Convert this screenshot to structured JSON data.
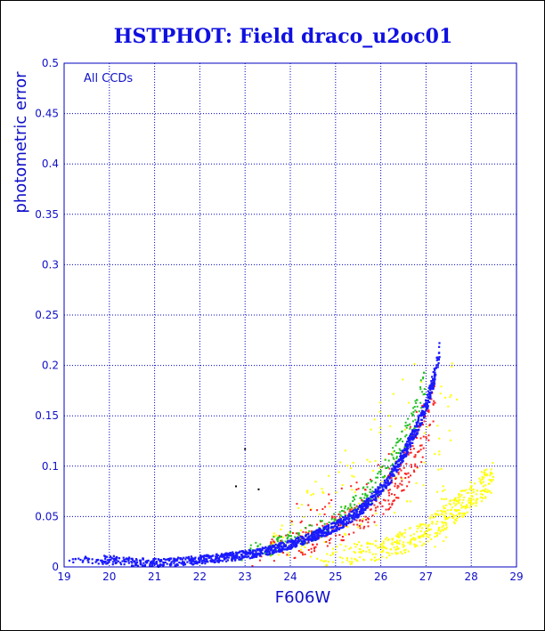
{
  "chart_data": {
    "type": "scatter",
    "title": "HSTPHOT: Field draco_u2oc01",
    "xlabel": "F606W",
    "ylabel": "photometric error",
    "annotation": "All CCDs",
    "xlim": [
      19,
      29
    ],
    "ylim": [
      0,
      0.5
    ],
    "xticks": [
      "19",
      "20",
      "21",
      "22",
      "23",
      "24",
      "25",
      "26",
      "27",
      "28",
      "29"
    ],
    "yticks": [
      "0",
      "0.05",
      "0.1",
      "0.15",
      "0.2",
      "0.25",
      "0.3",
      "0.35",
      "0.4",
      "0.45",
      "0.5"
    ],
    "grid": true,
    "colors": {
      "title": "#1010e0",
      "axes": "#0000c0",
      "grid": "#0000c0",
      "series_blue": "#1a1aff",
      "series_red": "#ff2020",
      "series_green": "#20c020",
      "series_yellow": "#ffff00",
      "series_black": "#000000"
    },
    "series": [
      {
        "color": "#1a1aff",
        "description_ref": "main sequence",
        "x": [
          19.0,
          19.5,
          20.0,
          20.5,
          21.0,
          21.5,
          22.0,
          22.5,
          23.0,
          23.5,
          24.0,
          24.5,
          25.0,
          25.3,
          25.6,
          25.9,
          26.2,
          26.4,
          26.6,
          26.8,
          27.0,
          27.1,
          27.2,
          27.3
        ],
        "y": [
          0.006,
          0.007,
          0.007,
          0.005,
          0.004,
          0.005,
          0.007,
          0.009,
          0.012,
          0.016,
          0.022,
          0.03,
          0.04,
          0.048,
          0.058,
          0.072,
          0.088,
          0.103,
          0.12,
          0.138,
          0.16,
          0.175,
          0.192,
          0.215
        ]
      },
      {
        "color": "#ff2020",
        "x": [
          23.0,
          24.0,
          24.8,
          25.4,
          25.9,
          26.3,
          26.6,
          26.9,
          27.1,
          27.2
        ],
        "y": [
          0.012,
          0.021,
          0.033,
          0.046,
          0.062,
          0.08,
          0.1,
          0.125,
          0.15,
          0.18
        ]
      },
      {
        "color": "#20c020",
        "x": [
          22.8,
          23.5,
          24.2,
          24.8,
          25.3,
          25.8,
          26.2,
          26.5,
          26.8,
          27.0
        ],
        "y": [
          0.013,
          0.02,
          0.028,
          0.04,
          0.055,
          0.075,
          0.1,
          0.125,
          0.155,
          0.19
        ]
      },
      {
        "color": "#ffff00",
        "x": [
          24.5,
          25.0,
          25.5,
          26.0,
          26.5,
          26.8,
          27.0,
          27.3,
          27.6,
          28.5
        ],
        "y": [
          0.008,
          0.011,
          0.014,
          0.018,
          0.025,
          0.03,
          0.035,
          0.045,
          0.055,
          0.09
        ]
      },
      {
        "color": "#000000",
        "x": [
          22.8,
          23.3,
          23.0
        ],
        "y": [
          0.08,
          0.077,
          0.117
        ]
      }
    ]
  }
}
